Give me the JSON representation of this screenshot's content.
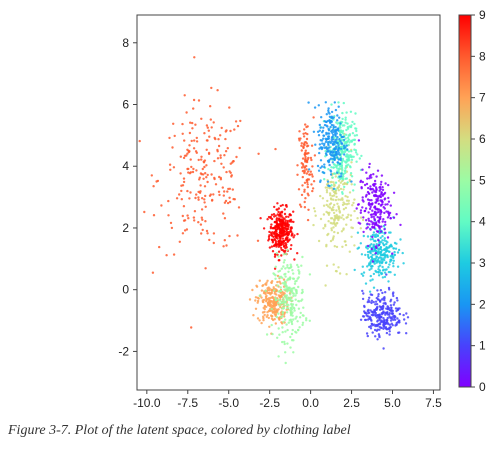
{
  "caption": "Figure 3-7. Plot of the latent space, colored by clothing label",
  "chart_data": {
    "type": "scatter",
    "title": "",
    "xlabel": "",
    "ylabel": "",
    "xlim": [
      -10.6,
      7.9
    ],
    "ylim": [
      -3.25,
      8.9
    ],
    "x_ticks": [
      -10.0,
      -7.5,
      -5.0,
      -2.5,
      0.0,
      2.5,
      5.0,
      7.5
    ],
    "x_tick_labels": [
      "-10.0",
      "-7.5",
      "-5.0",
      "-2.5",
      "0.0",
      "2.5",
      "5.0",
      "7.5"
    ],
    "y_ticks": [
      -2,
      0,
      2,
      4,
      6,
      8
    ],
    "y_tick_labels": [
      "-2",
      "0",
      "2",
      "4",
      "6",
      "8"
    ],
    "grid": false,
    "colorbar": {
      "colormap": "rainbow",
      "min": 0,
      "max": 9,
      "ticks": [
        0,
        1,
        2,
        3,
        4,
        5,
        6,
        7,
        8,
        9
      ],
      "tick_labels": [
        "0",
        "1",
        "2",
        "3",
        "4",
        "5",
        "6",
        "7",
        "8",
        "9"
      ],
      "colors": [
        "#8000ff",
        "#4842fc",
        "#1996f3",
        "#1ecbe1",
        "#62fbc4",
        "#9cfba4",
        "#d4dd80",
        "#ffa256",
        "#ff5a2e",
        "#ff0000"
      ]
    },
    "clusters": [
      {
        "label": 9,
        "center": [
          -1.8,
          1.9
        ],
        "spread": [
          0.6,
          0.6
        ],
        "count": 320
      },
      {
        "label": 8,
        "center": [
          -6.5,
          3.6
        ],
        "spread": [
          2.3,
          2.0
        ],
        "count": 230
      },
      {
        "label": 8,
        "center": [
          -0.3,
          4.0
        ],
        "spread": [
          0.4,
          1.3
        ],
        "count": 100
      },
      {
        "label": 7,
        "center": [
          -2.3,
          -0.4
        ],
        "spread": [
          0.8,
          0.6
        ],
        "count": 250
      },
      {
        "label": 5,
        "center": [
          -1.3,
          -0.3
        ],
        "spread": [
          0.8,
          1.1
        ],
        "count": 230
      },
      {
        "label": 6,
        "center": [
          1.6,
          2.6
        ],
        "spread": [
          0.9,
          1.4
        ],
        "count": 200
      },
      {
        "label": 4,
        "center": [
          1.9,
          4.5
        ],
        "spread": [
          0.7,
          1.0
        ],
        "count": 260
      },
      {
        "label": 2,
        "center": [
          1.3,
          4.8
        ],
        "spread": [
          0.7,
          1.0
        ],
        "count": 220
      },
      {
        "label": 3,
        "center": [
          4.2,
          1.2
        ],
        "spread": [
          0.9,
          0.7
        ],
        "count": 250
      },
      {
        "label": 0,
        "center": [
          3.9,
          2.7
        ],
        "spread": [
          0.8,
          1.0
        ],
        "count": 220
      },
      {
        "label": 1,
        "center": [
          4.4,
          -0.8
        ],
        "spread": [
          1.0,
          0.6
        ],
        "count": 260
      }
    ]
  }
}
